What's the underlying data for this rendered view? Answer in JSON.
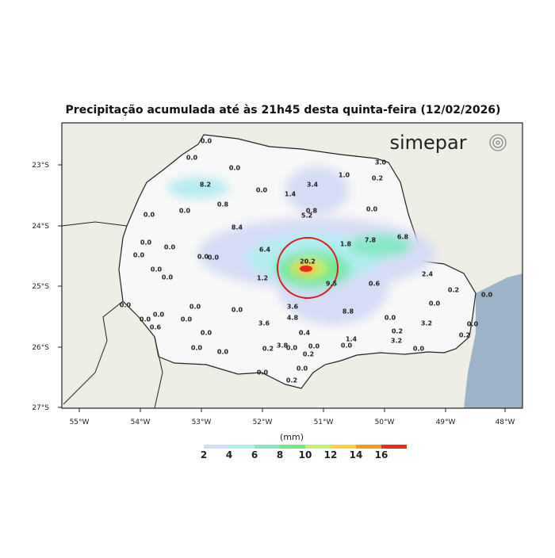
{
  "header": {
    "title": "Precipitação acumulada até às 21h45 desta quinta-feira (12/02/2026)",
    "logo": "simepar"
  },
  "map": {
    "lon_ticks": [
      "55°W",
      "54°W",
      "53°W",
      "52°W",
      "51°W",
      "50°W",
      "49°W",
      "48°W"
    ],
    "lat_ticks": [
      "23°S",
      "24°S",
      "25°S",
      "26°S",
      "27°S"
    ],
    "stations": [
      "0.0",
      "0.0",
      "0.0",
      "8.2",
      "0.0",
      "1.4",
      "3.4",
      "1.0",
      "3.0",
      "0.2",
      "0.0",
      "0.8",
      "5.2",
      "0.8",
      "0.0",
      "0.0",
      "8.4",
      "1.8",
      "7.8",
      "6.8",
      "6.4",
      "0.0",
      "0.0",
      "0.0",
      "0.0",
      "0.0",
      "20.2",
      "0.0",
      "0.0",
      "1.2",
      "9.5",
      "0.6",
      "2.4",
      "0.0",
      "3.6",
      "4.8",
      "8.8",
      "0.0",
      "0.0",
      "0.0",
      "3.2",
      "0.2",
      "3.2",
      "0.4",
      "3.6",
      "0.6",
      "0.0",
      "0.0",
      "0.0",
      "0.0",
      "0.0",
      "0.0",
      "0.2",
      "3.8",
      "0.0",
      "0.0",
      "0.0",
      "1.4",
      "0.2",
      "0.0",
      "0.0",
      "0.2",
      "0.0",
      "0.2",
      "0.0",
      "0.2",
      "0.0",
      "0.0"
    ]
  },
  "legend": {
    "unit": "(mm)",
    "labels": [
      2,
      4,
      6,
      8,
      10,
      12,
      14,
      16
    ],
    "colors": [
      "#ffffff",
      "#d6dcf5",
      "#b4ecf0",
      "#86e8c8",
      "#6fe78a",
      "#c6f26a",
      "#f7d640",
      "#f59a25",
      "#ef2a16"
    ]
  }
}
